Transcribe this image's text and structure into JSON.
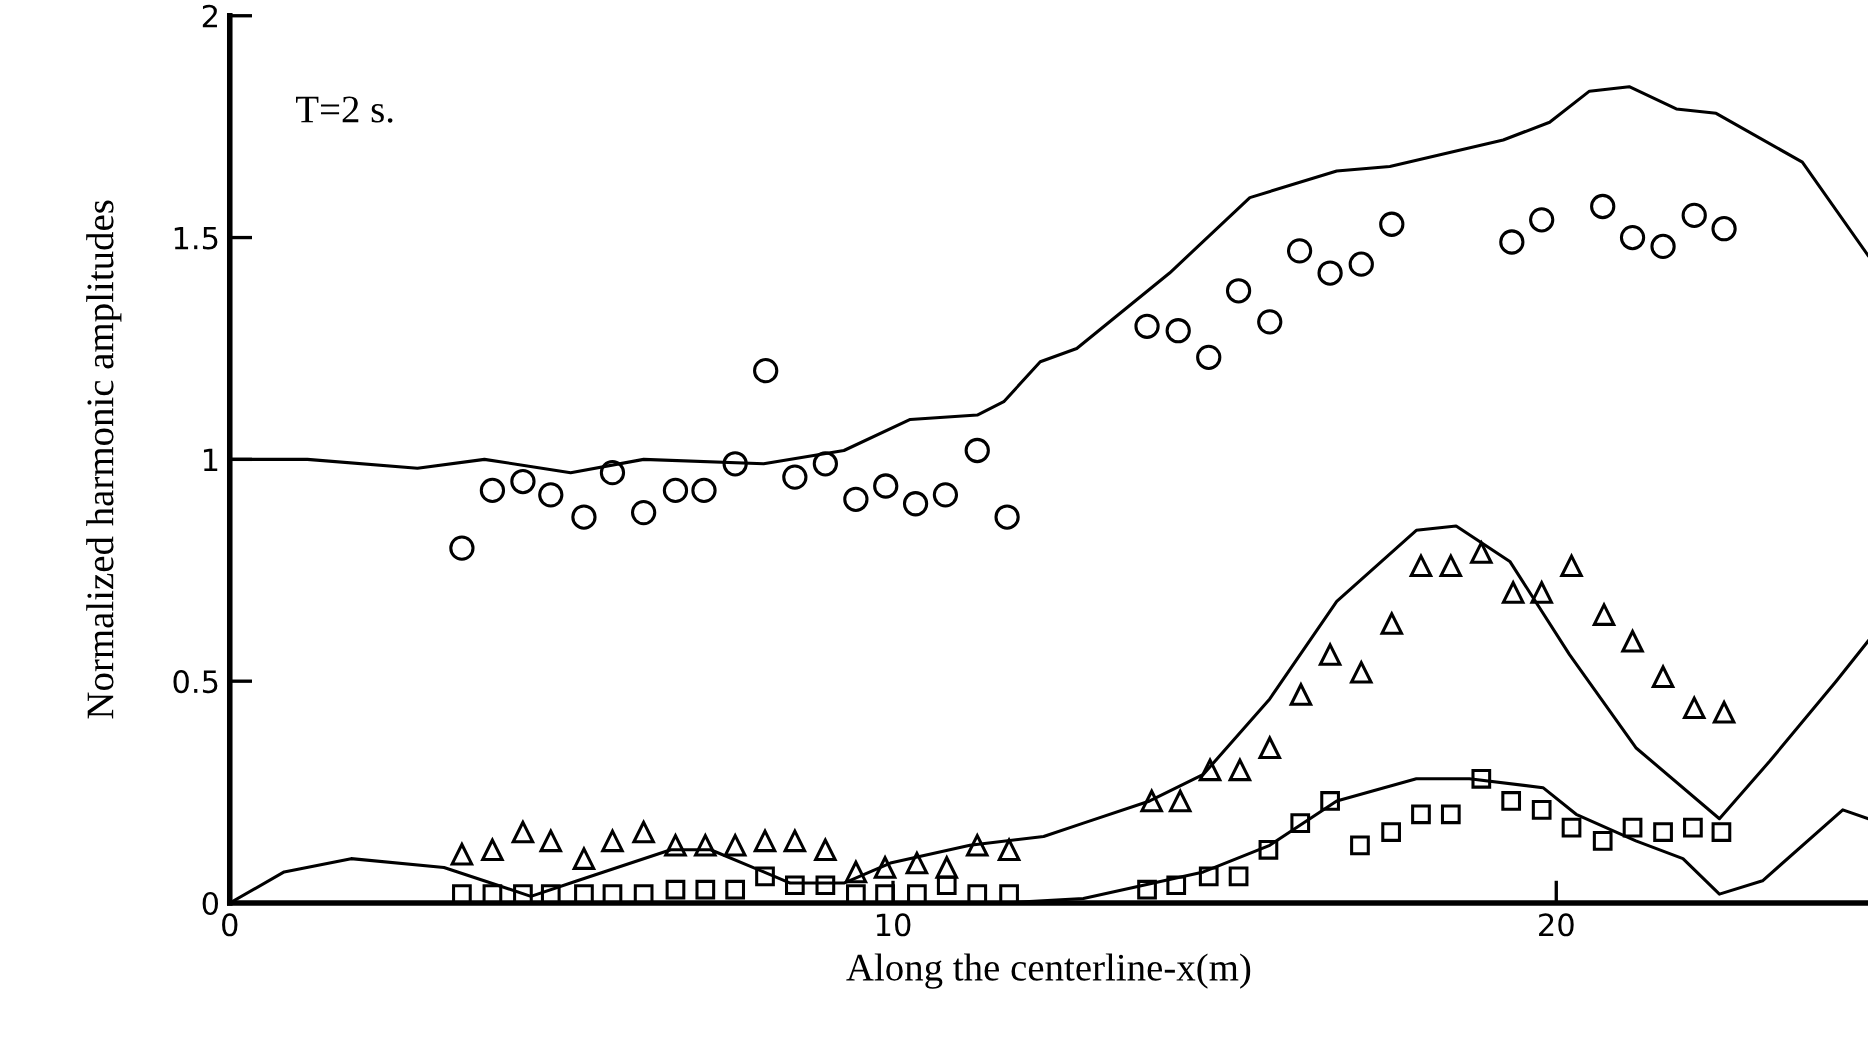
{
  "chart_data": {
    "type": "scatter",
    "xlabel": "Along the centerline-x(m)",
    "ylabel": "Normalized harmonic amplitudes",
    "annotations": [
      "T=2 s."
    ],
    "xlim": [
      0,
      24.7
    ],
    "ylim": [
      0,
      2
    ],
    "xticks": [
      0,
      10,
      20
    ],
    "yticks": [
      0,
      0.5,
      1,
      1.5,
      2
    ],
    "grid": false,
    "legend": false,
    "series": [
      {
        "type": "line",
        "color": "#000000",
        "line_style": "solid",
        "marker": "none",
        "x": [
          0.02,
          1.17,
          2.83,
          3.84,
          5.14,
          6.24,
          8.05,
          9.26,
          10.26,
          11.27,
          11.67,
          12.22,
          12.77,
          14.17,
          15.38,
          16.69,
          17.49,
          19.2,
          19.9,
          20.5,
          21.1,
          21.81,
          22.41,
          23.71,
          24.7
        ],
        "values": [
          1.0,
          1.0,
          0.98,
          1.0,
          0.97,
          1.0,
          0.99,
          1.02,
          1.09,
          1.1,
          1.13,
          1.22,
          1.25,
          1.42,
          1.59,
          1.65,
          1.66,
          1.72,
          1.76,
          1.83,
          1.84,
          1.79,
          1.78,
          1.67,
          1.46
        ]
      },
      {
        "type": "line",
        "color": "#000000",
        "line_style": "solid",
        "marker": "none",
        "x": [
          0,
          0.82,
          1.83,
          3.23,
          4.04,
          4.54,
          5.24,
          6.65,
          7.25,
          8.05,
          8.45,
          9.26,
          9.96,
          11.16,
          12.27,
          12.87,
          13.87,
          14.68,
          15.68,
          16.69,
          17.89,
          18.49,
          19.3,
          20.2,
          21.2,
          22.46,
          23.22,
          24.22,
          24.7
        ],
        "values": [
          0,
          0.07,
          0.1,
          0.08,
          0.04,
          0.015,
          0.05,
          0.12,
          0.12,
          0.07,
          0.045,
          0.045,
          0.09,
          0.13,
          0.15,
          0.18,
          0.23,
          0.29,
          0.46,
          0.68,
          0.84,
          0.85,
          0.77,
          0.56,
          0.35,
          0.19,
          0.32,
          0.5,
          0.59
        ]
      },
      {
        "type": "line",
        "color": "#000000",
        "line_style": "solid",
        "marker": "none",
        "x": [
          0,
          11.67,
          12.87,
          14.68,
          15.68,
          16.69,
          17.89,
          18.69,
          19.8,
          20.3,
          21.2,
          21.91,
          22.46,
          23.11,
          24.32,
          24.7
        ],
        "values": [
          0,
          0,
          0.01,
          0.07,
          0.13,
          0.23,
          0.28,
          0.28,
          0.26,
          0.2,
          0.14,
          0.1,
          0.02,
          0.05,
          0.21,
          0.19
        ]
      },
      {
        "color": "#000000",
        "marker": "circle",
        "x": [
          3.5,
          3.96,
          4.42,
          4.84,
          5.34,
          5.77,
          6.24,
          6.72,
          7.15,
          7.62,
          8.08,
          8.52,
          8.98,
          9.44,
          9.89,
          10.34,
          10.79,
          11.27,
          11.72,
          13.83,
          14.3,
          14.76,
          15.21,
          15.68,
          16.13,
          16.59,
          17.06,
          17.52,
          19.33,
          19.78,
          20.7,
          21.15,
          21.61,
          22.08,
          22.53
        ],
        "values": [
          0.8,
          0.93,
          0.95,
          0.92,
          0.87,
          0.97,
          0.88,
          0.93,
          0.93,
          0.99,
          1.2,
          0.96,
          0.99,
          0.91,
          0.94,
          0.9,
          0.92,
          1.02,
          0.87,
          1.3,
          1.29,
          1.23,
          1.38,
          1.31,
          1.47,
          1.42,
          1.44,
          1.53,
          1.49,
          1.54,
          1.57,
          1.5,
          1.48,
          1.55,
          1.52
        ]
      },
      {
        "color": "#000000",
        "marker": "triangle",
        "x": [
          3.5,
          3.96,
          4.42,
          4.84,
          5.34,
          5.77,
          6.24,
          6.72,
          7.17,
          7.62,
          8.07,
          8.52,
          8.98,
          9.44,
          9.88,
          10.36,
          10.81,
          11.27,
          11.75,
          13.9,
          14.33,
          14.78,
          15.23,
          15.68,
          16.15,
          16.59,
          17.06,
          17.52,
          17.96,
          18.41,
          18.87,
          19.35,
          19.78,
          20.23,
          20.72,
          21.15,
          21.61,
          22.08,
          22.53
        ],
        "values": [
          0.11,
          0.12,
          0.16,
          0.14,
          0.1,
          0.14,
          0.16,
          0.13,
          0.13,
          0.13,
          0.14,
          0.14,
          0.12,
          0.07,
          0.08,
          0.09,
          0.08,
          0.13,
          0.12,
          0.23,
          0.23,
          0.3,
          0.3,
          0.35,
          0.47,
          0.56,
          0.52,
          0.63,
          0.76,
          0.76,
          0.79,
          0.7,
          0.7,
          0.76,
          0.65,
          0.59,
          0.51,
          0.44,
          0.43
        ]
      },
      {
        "color": "#000000",
        "marker": "square",
        "x": [
          3.5,
          3.96,
          4.42,
          4.84,
          5.34,
          5.77,
          6.24,
          6.72,
          7.17,
          7.62,
          8.07,
          8.52,
          8.98,
          9.44,
          9.88,
          10.36,
          10.81,
          11.27,
          11.75,
          13.83,
          14.27,
          14.76,
          15.21,
          15.66,
          16.14,
          16.59,
          17.04,
          17.51,
          17.96,
          18.41,
          18.87,
          19.32,
          19.78,
          20.23,
          20.7,
          21.15,
          21.61,
          22.06,
          22.49
        ],
        "values": [
          0.02,
          0.02,
          0.02,
          0.02,
          0.02,
          0.02,
          0.02,
          0.03,
          0.03,
          0.03,
          0.06,
          0.04,
          0.04,
          0.02,
          0.02,
          0.02,
          0.04,
          0.02,
          0.02,
          0.03,
          0.04,
          0.06,
          0.06,
          0.12,
          0.18,
          0.23,
          0.13,
          0.16,
          0.2,
          0.2,
          0.28,
          0.23,
          0.21,
          0.17,
          0.14,
          0.17,
          0.16,
          0.17,
          0.16
        ]
      }
    ]
  }
}
